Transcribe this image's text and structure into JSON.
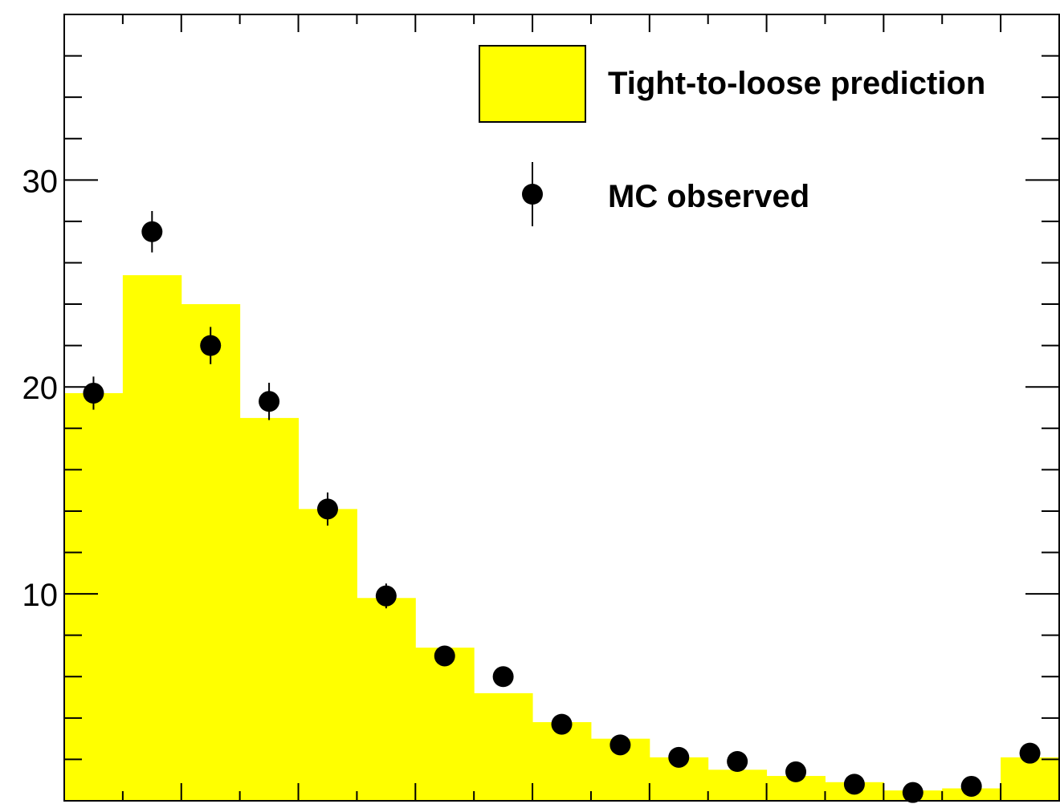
{
  "chart_data": {
    "type": "bar",
    "title": "",
    "xlabel": "",
    "ylabel": "",
    "ylim": [
      0,
      38
    ],
    "bins": 17,
    "y_ticks": [
      {
        "value": 10,
        "label": "10"
      },
      {
        "value": 20,
        "label": "20"
      },
      {
        "value": 30,
        "label": "30"
      }
    ],
    "series": [
      {
        "name": "Tight-to-loose prediction",
        "kind": "histogram",
        "color": "#ffff00",
        "values": [
          19.7,
          25.4,
          24.0,
          18.5,
          14.1,
          9.8,
          7.4,
          5.2,
          3.8,
          3.0,
          2.1,
          1.5,
          1.2,
          0.9,
          0.5,
          0.6,
          2.1
        ]
      },
      {
        "name": "MC observed",
        "kind": "points",
        "color": "#000000",
        "values": [
          19.7,
          27.5,
          22.0,
          19.3,
          14.1,
          9.9,
          7.0,
          6.0,
          3.7,
          2.7,
          2.1,
          1.9,
          1.4,
          0.8,
          0.4,
          0.7,
          2.3
        ],
        "errors": [
          0.8,
          1.0,
          0.9,
          0.9,
          0.8,
          0.6,
          0.3,
          0.3,
          0.2,
          0.2,
          0.2,
          0.2,
          0.15,
          0.15,
          0.1,
          0.15,
          0.3
        ]
      }
    ],
    "legend": {
      "placement": "top-right",
      "entries": [
        "Tight-to-loose prediction",
        "MC observed"
      ]
    },
    "grid": false
  }
}
